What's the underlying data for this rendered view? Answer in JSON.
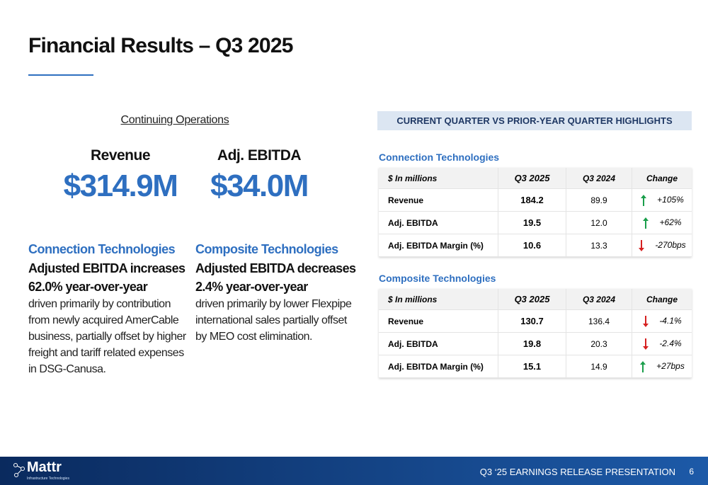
{
  "header": {
    "title": "Financial Results – Q3 2025"
  },
  "left": {
    "section_label": "Continuing Operations",
    "kpis": [
      {
        "label": "Revenue",
        "value": "$314.9M"
      },
      {
        "label": "Adj. EBITDA",
        "value": "$34.0M"
      }
    ],
    "segments": [
      {
        "name": "Connection Technologies",
        "headline": "Adjusted EBITDA increases 62.0% year-over-year",
        "body": "driven primarily by contribution from newly acquired AmerCable business, partially offset by higher freight and tariff related expenses in DSG-Canusa."
      },
      {
        "name": "Composite Technologies",
        "headline": "Adjusted EBITDA decreases 2.4% year-over-year",
        "body": "driven primarily by lower Flexpipe international sales partially offset by MEO cost elimination."
      }
    ]
  },
  "right": {
    "banner": "CURRENT QUARTER VS PRIOR-YEAR QUARTER HIGHLIGHTS",
    "tables": [
      {
        "title": "Connection Technologies",
        "header": [
          "$ In millions",
          "Q3 2025",
          "Q3 2024",
          "Change"
        ],
        "rows": [
          [
            "Revenue",
            "184.2",
            "89.9",
            "+105%"
          ],
          [
            "Adj. EBITDA",
            "19.5",
            "12.0",
            "+62%"
          ],
          [
            "Adj. EBITDA Margin (%)",
            "10.6",
            "13.3",
            "-270bps"
          ]
        ],
        "directions": [
          "up",
          "up",
          "down"
        ]
      },
      {
        "title": "Composite Technologies",
        "header": [
          "$ In millions",
          "Q3 2025",
          "Q3 2024",
          "Change"
        ],
        "rows": [
          [
            "Revenue",
            "130.7",
            "136.4",
            "-4.1%"
          ],
          [
            "Adj. EBITDA",
            "19.8",
            "20.3",
            "-2.4%"
          ],
          [
            "Adj. EBITDA Margin (%)",
            "15.1",
            "14.9",
            "+27bps"
          ]
        ],
        "directions": [
          "down",
          "down",
          "up"
        ]
      }
    ]
  },
  "footer": {
    "logo": "Mattr",
    "logo_sub": "Infrastructure Technologies",
    "caption": "Q3 ‘25 EARNINGS RELEASE PRESENTATION",
    "page": "6"
  }
}
